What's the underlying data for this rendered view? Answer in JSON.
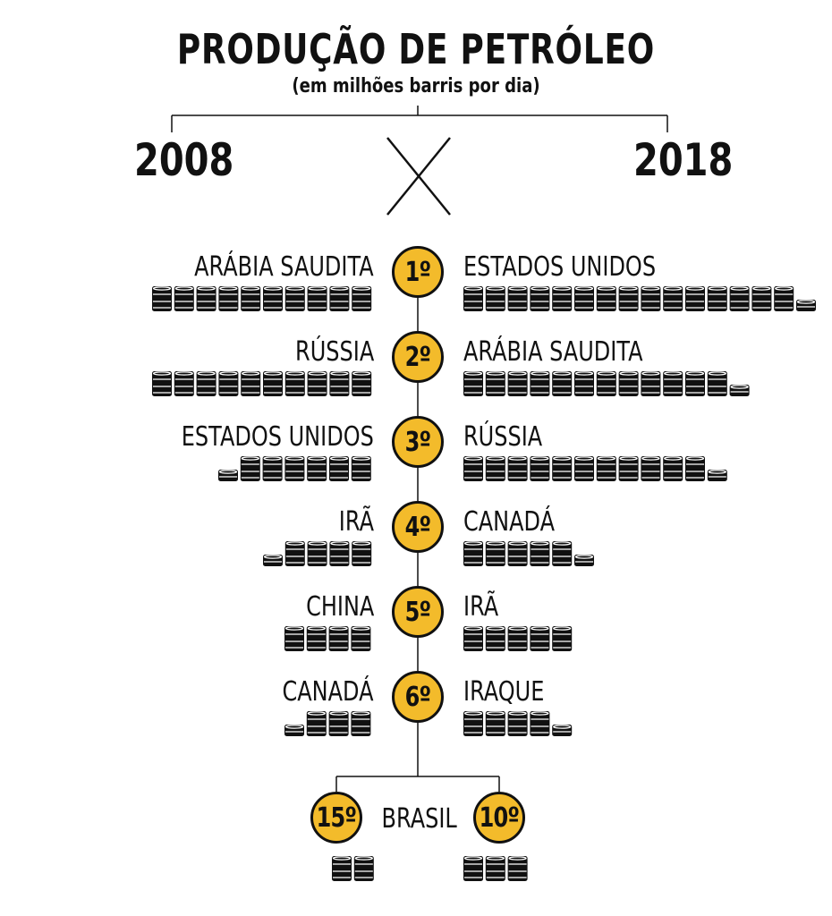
{
  "title": "PRODUÇÃO DE PETRÓLEO",
  "subtitle": "(em milhões barris por dia)",
  "year_left": "2008",
  "year_right": "2018",
  "colors": {
    "badge": "#f3bb2b",
    "ink": "#111111"
  },
  "icons": {
    "barrel": "oil-barrel-icon",
    "versus": "versus-x-icon"
  },
  "ranking": [
    {
      "rank": "1º",
      "left": {
        "country": "ARÁBIA SAUDITA",
        "barrels": 10
      },
      "right": {
        "country": "ESTADOS UNIDOS",
        "barrels": 15.5
      }
    },
    {
      "rank": "2º",
      "left": {
        "country": "RÚSSIA",
        "barrels": 10
      },
      "right": {
        "country": "ARÁBIA SAUDITA",
        "barrels": 12.5
      }
    },
    {
      "rank": "3º",
      "left": {
        "country": "ESTADOS UNIDOS",
        "barrels": 6.5
      },
      "right": {
        "country": "RÚSSIA",
        "barrels": 11.5
      }
    },
    {
      "rank": "4º",
      "left": {
        "country": "IRÃ",
        "barrels": 4.5
      },
      "right": {
        "country": "CANADÁ",
        "barrels": 5.5
      }
    },
    {
      "rank": "5º",
      "left": {
        "country": "CHINA",
        "barrels": 4
      },
      "right": {
        "country": "IRÃ",
        "barrels": 5
      }
    },
    {
      "rank": "6º",
      "left": {
        "country": "CANADÁ",
        "barrels": 3.5
      },
      "right": {
        "country": "IRAQUE",
        "barrels": 4.5
      }
    }
  ],
  "brasil": {
    "country": "BRASIL",
    "rank_2008": "15º",
    "rank_2018": "10º",
    "barrels_2008": 2,
    "barrels_2018": 3
  }
}
